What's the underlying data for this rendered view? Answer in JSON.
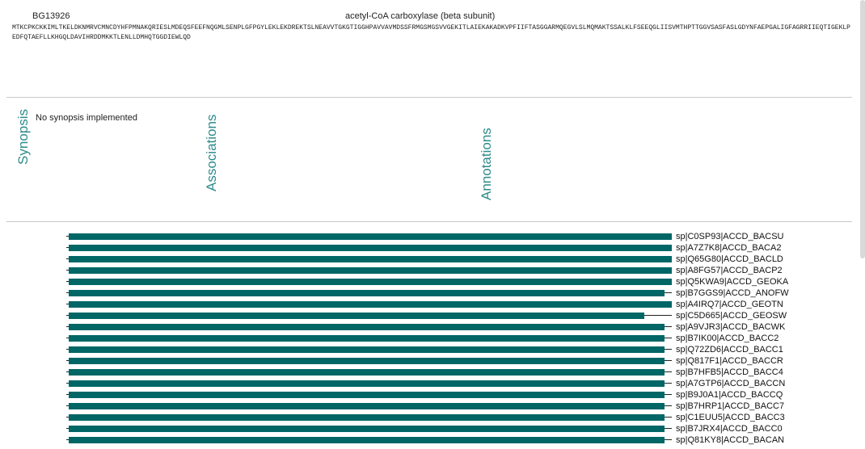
{
  "header": {
    "gene_id": "BG13926",
    "gene_name": "acetyl-CoA carboxylase (beta subunit)",
    "sequence": "MTKCPKCKKIMLTKELDKNMRVCMNCDYHFPMNAKQRIESLMDEQSFEEFNQGMLSENPLGFPGYLEKLEKDREKTSLNEAVVTGKGTIGGHPAVVAVMDSSFRMGSMGSVVGEKITLAIEKAKADKVPFIIFTASGGARMQEGVLSLMQMAKTSSALKLFSEEQGLIISVMTHPTTGGVSASFASLGDYNFAEPGALIGFAGRRIIEQTIGEKLPEDFQTAEFLLKHGQLDAVIHRDDMKKTLENLLDMHQTGGDIEWLQD"
  },
  "sections": {
    "synopsis_label": "Synopsis",
    "synopsis_text": "No synopsis implemented",
    "associations_label": "Associations",
    "annotations_label": "Annotations"
  },
  "alignment": {
    "bar_color": "#006666",
    "rows": [
      {
        "label": "sp|C0SP93|ACCD_BACSU",
        "coverage": 1.0
      },
      {
        "label": "sp|A7Z7K8|ACCD_BACA2",
        "coverage": 1.0
      },
      {
        "label": "sp|Q65G80|ACCD_BACLD",
        "coverage": 1.0
      },
      {
        "label": "sp|A8FG57|ACCD_BACP2",
        "coverage": 1.0
      },
      {
        "label": "sp|Q5KWA9|ACCD_GEOKA",
        "coverage": 1.0
      },
      {
        "label": "sp|B7GGS9|ACCD_ANOFW",
        "coverage": 0.988
      },
      {
        "label": "sp|A4IRQ7|ACCD_GEOTN",
        "coverage": 1.0
      },
      {
        "label": "sp|C5D665|ACCD_GEOSW",
        "coverage": 0.955
      },
      {
        "label": "sp|A9VJR3|ACCD_BACWK",
        "coverage": 0.988
      },
      {
        "label": "sp|B7IK00|ACCD_BACC2",
        "coverage": 0.988
      },
      {
        "label": "sp|Q72ZD6|ACCD_BACC1",
        "coverage": 0.988
      },
      {
        "label": "sp|Q817F1|ACCD_BACCR",
        "coverage": 0.988
      },
      {
        "label": "sp|B7HFB5|ACCD_BACC4",
        "coverage": 0.988
      },
      {
        "label": "sp|A7GTP6|ACCD_BACCN",
        "coverage": 0.988
      },
      {
        "label": "sp|B9J0A1|ACCD_BACCQ",
        "coverage": 0.988
      },
      {
        "label": "sp|B7HRP1|ACCD_BACC7",
        "coverage": 0.988
      },
      {
        "label": "sp|C1EUU5|ACCD_BACC3",
        "coverage": 0.988
      },
      {
        "label": "sp|B7JRX4|ACCD_BACC0",
        "coverage": 0.988
      },
      {
        "label": "sp|Q81KY8|ACCD_BACAN",
        "coverage": 0.988
      }
    ]
  }
}
